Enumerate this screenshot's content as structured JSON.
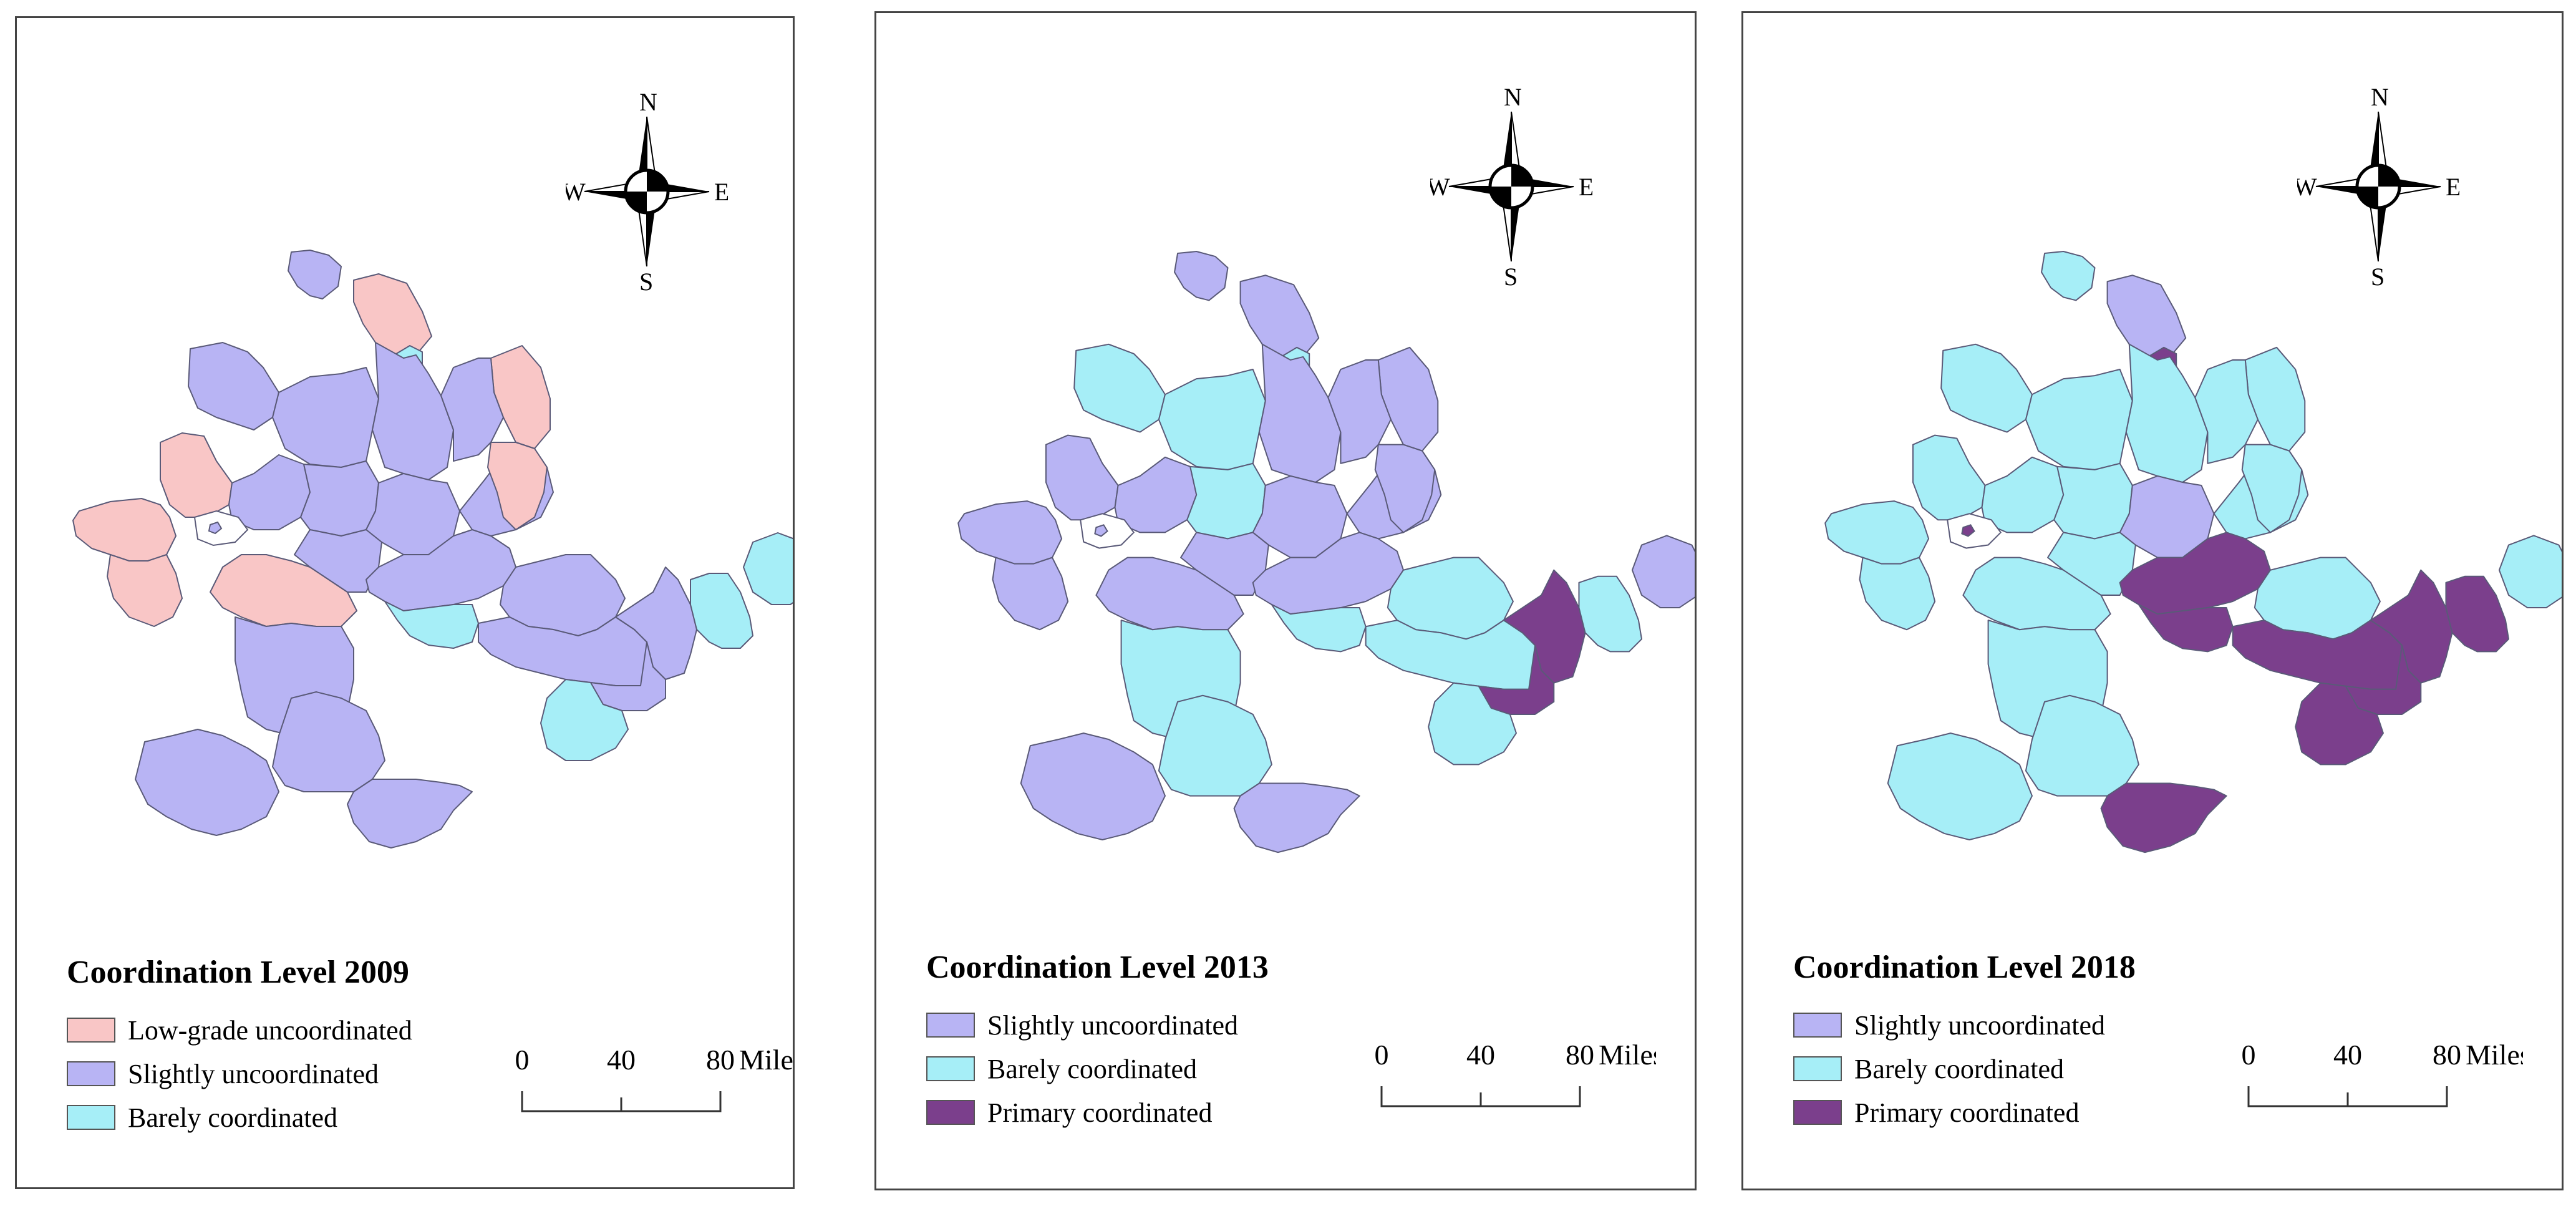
{
  "colors": {
    "low_grade_uncoordinated": "#f9c6c6",
    "slightly_uncoordinated": "#b8b4f4",
    "barely_coordinated": "#a6eef7",
    "primary_coordinated": "#7b3f8c",
    "outline": "#5a5a78"
  },
  "compass": {
    "n": "N",
    "s": "S",
    "e": "E",
    "w": "W"
  },
  "scale": {
    "tick_0": "0",
    "tick_1": "40",
    "tick_2": "80",
    "unit": "Miles"
  },
  "panels": [
    {
      "title": "Coordination Level 2009",
      "legend": [
        {
          "label": "Low-grade uncoordinated",
          "color": "#f9c6c6"
        },
        {
          "label": "Slightly uncoordinated",
          "color": "#b8b4f4"
        },
        {
          "label": "Barely coordinated",
          "color": "#a6eef7"
        }
      ]
    },
    {
      "title": "Coordination Level 2013",
      "legend": [
        {
          "label": "Slightly uncoordinated",
          "color": "#b8b4f4"
        },
        {
          "label": "Barely coordinated",
          "color": "#a6eef7"
        },
        {
          "label": "Primary coordinated",
          "color": "#7b3f8c"
        }
      ]
    },
    {
      "title": "Coordination Level 2018",
      "legend": [
        {
          "label": "Slightly uncoordinated",
          "color": "#b8b4f4"
        },
        {
          "label": "Barely coordinated",
          "color": "#a6eef7"
        },
        {
          "label": "Primary coordinated",
          "color": "#7b3f8c"
        }
      ]
    }
  ],
  "regions": [
    {
      "id": "r01",
      "levels": [
        "slightly_uncoordinated",
        "slightly_uncoordinated",
        "barely_coordinated"
      ]
    },
    {
      "id": "r02",
      "levels": [
        "low_grade_uncoordinated",
        "slightly_uncoordinated",
        "slightly_uncoordinated"
      ]
    },
    {
      "id": "r03",
      "levels": [
        "barely_coordinated",
        "barely_coordinated",
        "primary_coordinated"
      ]
    },
    {
      "id": "r04",
      "levels": [
        "slightly_uncoordinated",
        "barely_coordinated",
        "barely_coordinated"
      ]
    },
    {
      "id": "r05",
      "levels": [
        "slightly_uncoordinated",
        "barely_coordinated",
        "barely_coordinated"
      ]
    },
    {
      "id": "r06",
      "levels": [
        "slightly_uncoordinated",
        "slightly_uncoordinated",
        "barely_coordinated"
      ]
    },
    {
      "id": "r07",
      "levels": [
        "low_grade_uncoordinated",
        "slightly_uncoordinated",
        "barely_coordinated"
      ]
    },
    {
      "id": "r08",
      "levels": [
        "slightly_uncoordinated",
        "slightly_uncoordinated",
        "barely_coordinated"
      ]
    },
    {
      "id": "r09",
      "levels": [
        "low_grade_uncoordinated",
        "slightly_uncoordinated",
        "barely_coordinated"
      ]
    },
    {
      "id": "r10",
      "levels": [
        "slightly_uncoordinated",
        "slightly_uncoordinated",
        "barely_coordinated"
      ]
    },
    {
      "id": "r11",
      "levels": [
        "slightly_uncoordinated",
        "barely_coordinated",
        "barely_coordinated"
      ]
    },
    {
      "id": "r12",
      "levels": [
        "slightly_uncoordinated",
        "slightly_uncoordinated",
        "slightly_uncoordinated"
      ]
    },
    {
      "id": "r13",
      "levels": [
        "slightly_uncoordinated",
        "slightly_uncoordinated",
        "barely_coordinated"
      ]
    },
    {
      "id": "r14",
      "levels": [
        "low_grade_uncoordinated",
        "slightly_uncoordinated",
        "barely_coordinated"
      ]
    },
    {
      "id": "r15",
      "levels": [
        "low_grade_uncoordinated",
        "slightly_uncoordinated",
        "barely_coordinated"
      ]
    },
    {
      "id": "r16",
      "levels": [
        "low_grade_uncoordinated",
        "slightly_uncoordinated",
        "barely_coordinated"
      ]
    },
    {
      "id": "r17",
      "levels": [
        "low_grade_uncoordinated",
        "slightly_uncoordinated",
        "barely_coordinated"
      ]
    },
    {
      "id": "r18",
      "levels": [
        "slightly_uncoordinated",
        "slightly_uncoordinated",
        "barely_coordinated"
      ]
    },
    {
      "id": "r19",
      "levels": [
        "slightly_uncoordinated",
        "slightly_uncoordinated",
        "primary_coordinated"
      ]
    },
    {
      "id": "r20",
      "levels": [
        "barely_coordinated",
        "barely_coordinated",
        "primary_coordinated"
      ]
    },
    {
      "id": "r21",
      "levels": [
        "slightly_uncoordinated",
        "barely_coordinated",
        "barely_coordinated"
      ]
    },
    {
      "id": "r22",
      "levels": [
        "slightly_uncoordinated",
        "barely_coordinated",
        "primary_coordinated"
      ]
    },
    {
      "id": "r23",
      "levels": [
        "slightly_uncoordinated",
        "primary_coordinated",
        "primary_coordinated"
      ]
    },
    {
      "id": "r24",
      "levels": [
        "slightly_uncoordinated",
        "primary_coordinated",
        "primary_coordinated"
      ]
    },
    {
      "id": "r25",
      "levels": [
        "barely_coordinated",
        "barely_coordinated",
        "primary_coordinated"
      ]
    },
    {
      "id": "r26",
      "levels": [
        "barely_coordinated",
        "barely_coordinated",
        "primary_coordinated"
      ]
    },
    {
      "id": "r27",
      "levels": [
        "barely_coordinated",
        "slightly_uncoordinated",
        "barely_coordinated"
      ]
    },
    {
      "id": "r28",
      "levels": [
        "slightly_uncoordinated",
        "barely_coordinated",
        "barely_coordinated"
      ]
    },
    {
      "id": "r29",
      "levels": [
        "slightly_uncoordinated",
        "slightly_uncoordinated",
        "barely_coordinated"
      ]
    },
    {
      "id": "r30",
      "levels": [
        "slightly_uncoordinated",
        "barely_coordinated",
        "barely_coordinated"
      ]
    },
    {
      "id": "r31",
      "levels": [
        "slightly_uncoordinated",
        "slightly_uncoordinated",
        "primary_coordinated"
      ]
    }
  ]
}
